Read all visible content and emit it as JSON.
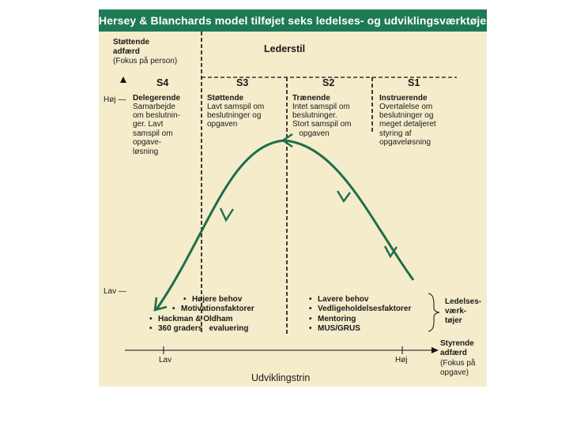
{
  "title": "Hersey & Blanchards model tilføjet seks ledelses- og udviklingsværktøjer",
  "y_axis": {
    "label": [
      "Støttende",
      "adfærd",
      "(Fokus på person)"
    ],
    "high": "Høj —",
    "low": "Lav —"
  },
  "top_label": "Lederstil",
  "styles": [
    {
      "code": "S4",
      "name": "Delegerende",
      "lines": [
        "Samarbejde",
        "om beslutnin-",
        "ger. Lavt",
        "samspil om",
        "opgave-",
        "løsning"
      ]
    },
    {
      "code": "S3",
      "name": "Støttende",
      "lines": [
        "Lavt samspil om",
        "beslutninger og",
        "opgaven"
      ]
    },
    {
      "code": "S2",
      "name": "Trænende",
      "lines": [
        "Intet samspil om",
        "beslutninger.",
        "Stort samspil om",
        "   opgaven"
      ]
    },
    {
      "code": "S1",
      "name": "Instruerende",
      "lines": [
        "Overtalelse om",
        "beslutninger og",
        "meget detaljeret",
        "styring af",
        "opgaveløsning"
      ]
    }
  ],
  "tools_left": [
    "Højere behov",
    "Motivationsfaktorer",
    "Hackman & Oldham",
    "360 graders   evaluering"
  ],
  "tools_right": [
    "Lavere behov",
    "Vedligeholdelsesfaktorer",
    "Mentoring",
    "MUS/GRUS"
  ],
  "tools_label": [
    "Ledelses-",
    "værk-",
    "tøjer"
  ],
  "x_axis": {
    "low": "Lav",
    "high": "Høj",
    "title": "Udviklingstrin",
    "end_label": [
      "Styrende",
      "adfærd",
      "(Fokus på",
      "opgave)"
    ]
  },
  "bullet": "•",
  "colors": {
    "accent": "#1e7a55",
    "panel": "#f4eccb",
    "curve": "#1e6e4a"
  }
}
